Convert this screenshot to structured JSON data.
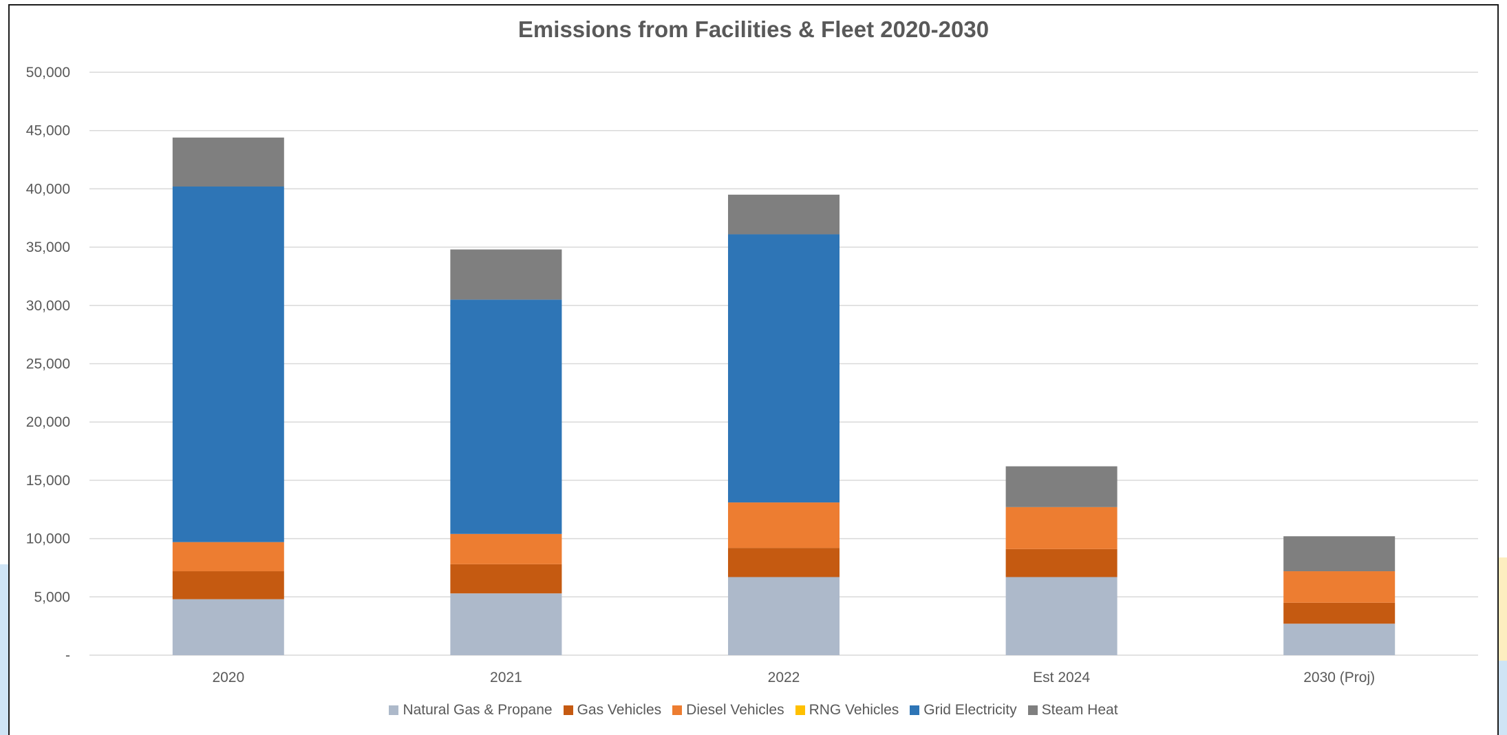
{
  "chart_data": {
    "type": "bar",
    "stacked": true,
    "title": "Emissions from Facilities & Fleet 2020-2030",
    "xlabel": "",
    "ylabel": "",
    "ylim": [
      0,
      50000
    ],
    "y_ticks": [
      {
        "value": 0,
        "label": "-"
      },
      {
        "value": 5000,
        "label": "5,000"
      },
      {
        "value": 10000,
        "label": "10,000"
      },
      {
        "value": 15000,
        "label": "15,000"
      },
      {
        "value": 20000,
        "label": "20,000"
      },
      {
        "value": 25000,
        "label": "25,000"
      },
      {
        "value": 30000,
        "label": "30,000"
      },
      {
        "value": 35000,
        "label": "35,000"
      },
      {
        "value": 40000,
        "label": "40,000"
      },
      {
        "value": 45000,
        "label": "45,000"
      },
      {
        "value": 50000,
        "label": "50,000"
      }
    ],
    "grid": true,
    "legend_position": "bottom",
    "categories": [
      "2020",
      "2021",
      "2022",
      "Est 2024",
      "2030 (Proj)"
    ],
    "series": [
      {
        "name": "Natural Gas & Propane",
        "color": "#adb9ca",
        "values": [
          4800,
          5300,
          6700,
          6700,
          2700
        ]
      },
      {
        "name": "Gas Vehicles",
        "color": "#c55a11",
        "values": [
          2400,
          2500,
          2500,
          2400,
          1800
        ]
      },
      {
        "name": "Diesel Vehicles",
        "color": "#ed7d31",
        "values": [
          2500,
          2600,
          3900,
          3600,
          2700
        ]
      },
      {
        "name": "RNG Vehicles",
        "color": "#ffc000",
        "values": [
          0,
          0,
          0,
          0,
          0
        ]
      },
      {
        "name": "Grid Electricity",
        "color": "#2e75b6",
        "values": [
          30500,
          20100,
          23000,
          0,
          0
        ]
      },
      {
        "name": "Steam Heat",
        "color": "#7f7f7f",
        "values": [
          4200,
          4300,
          3400,
          3500,
          3000
        ]
      }
    ]
  }
}
